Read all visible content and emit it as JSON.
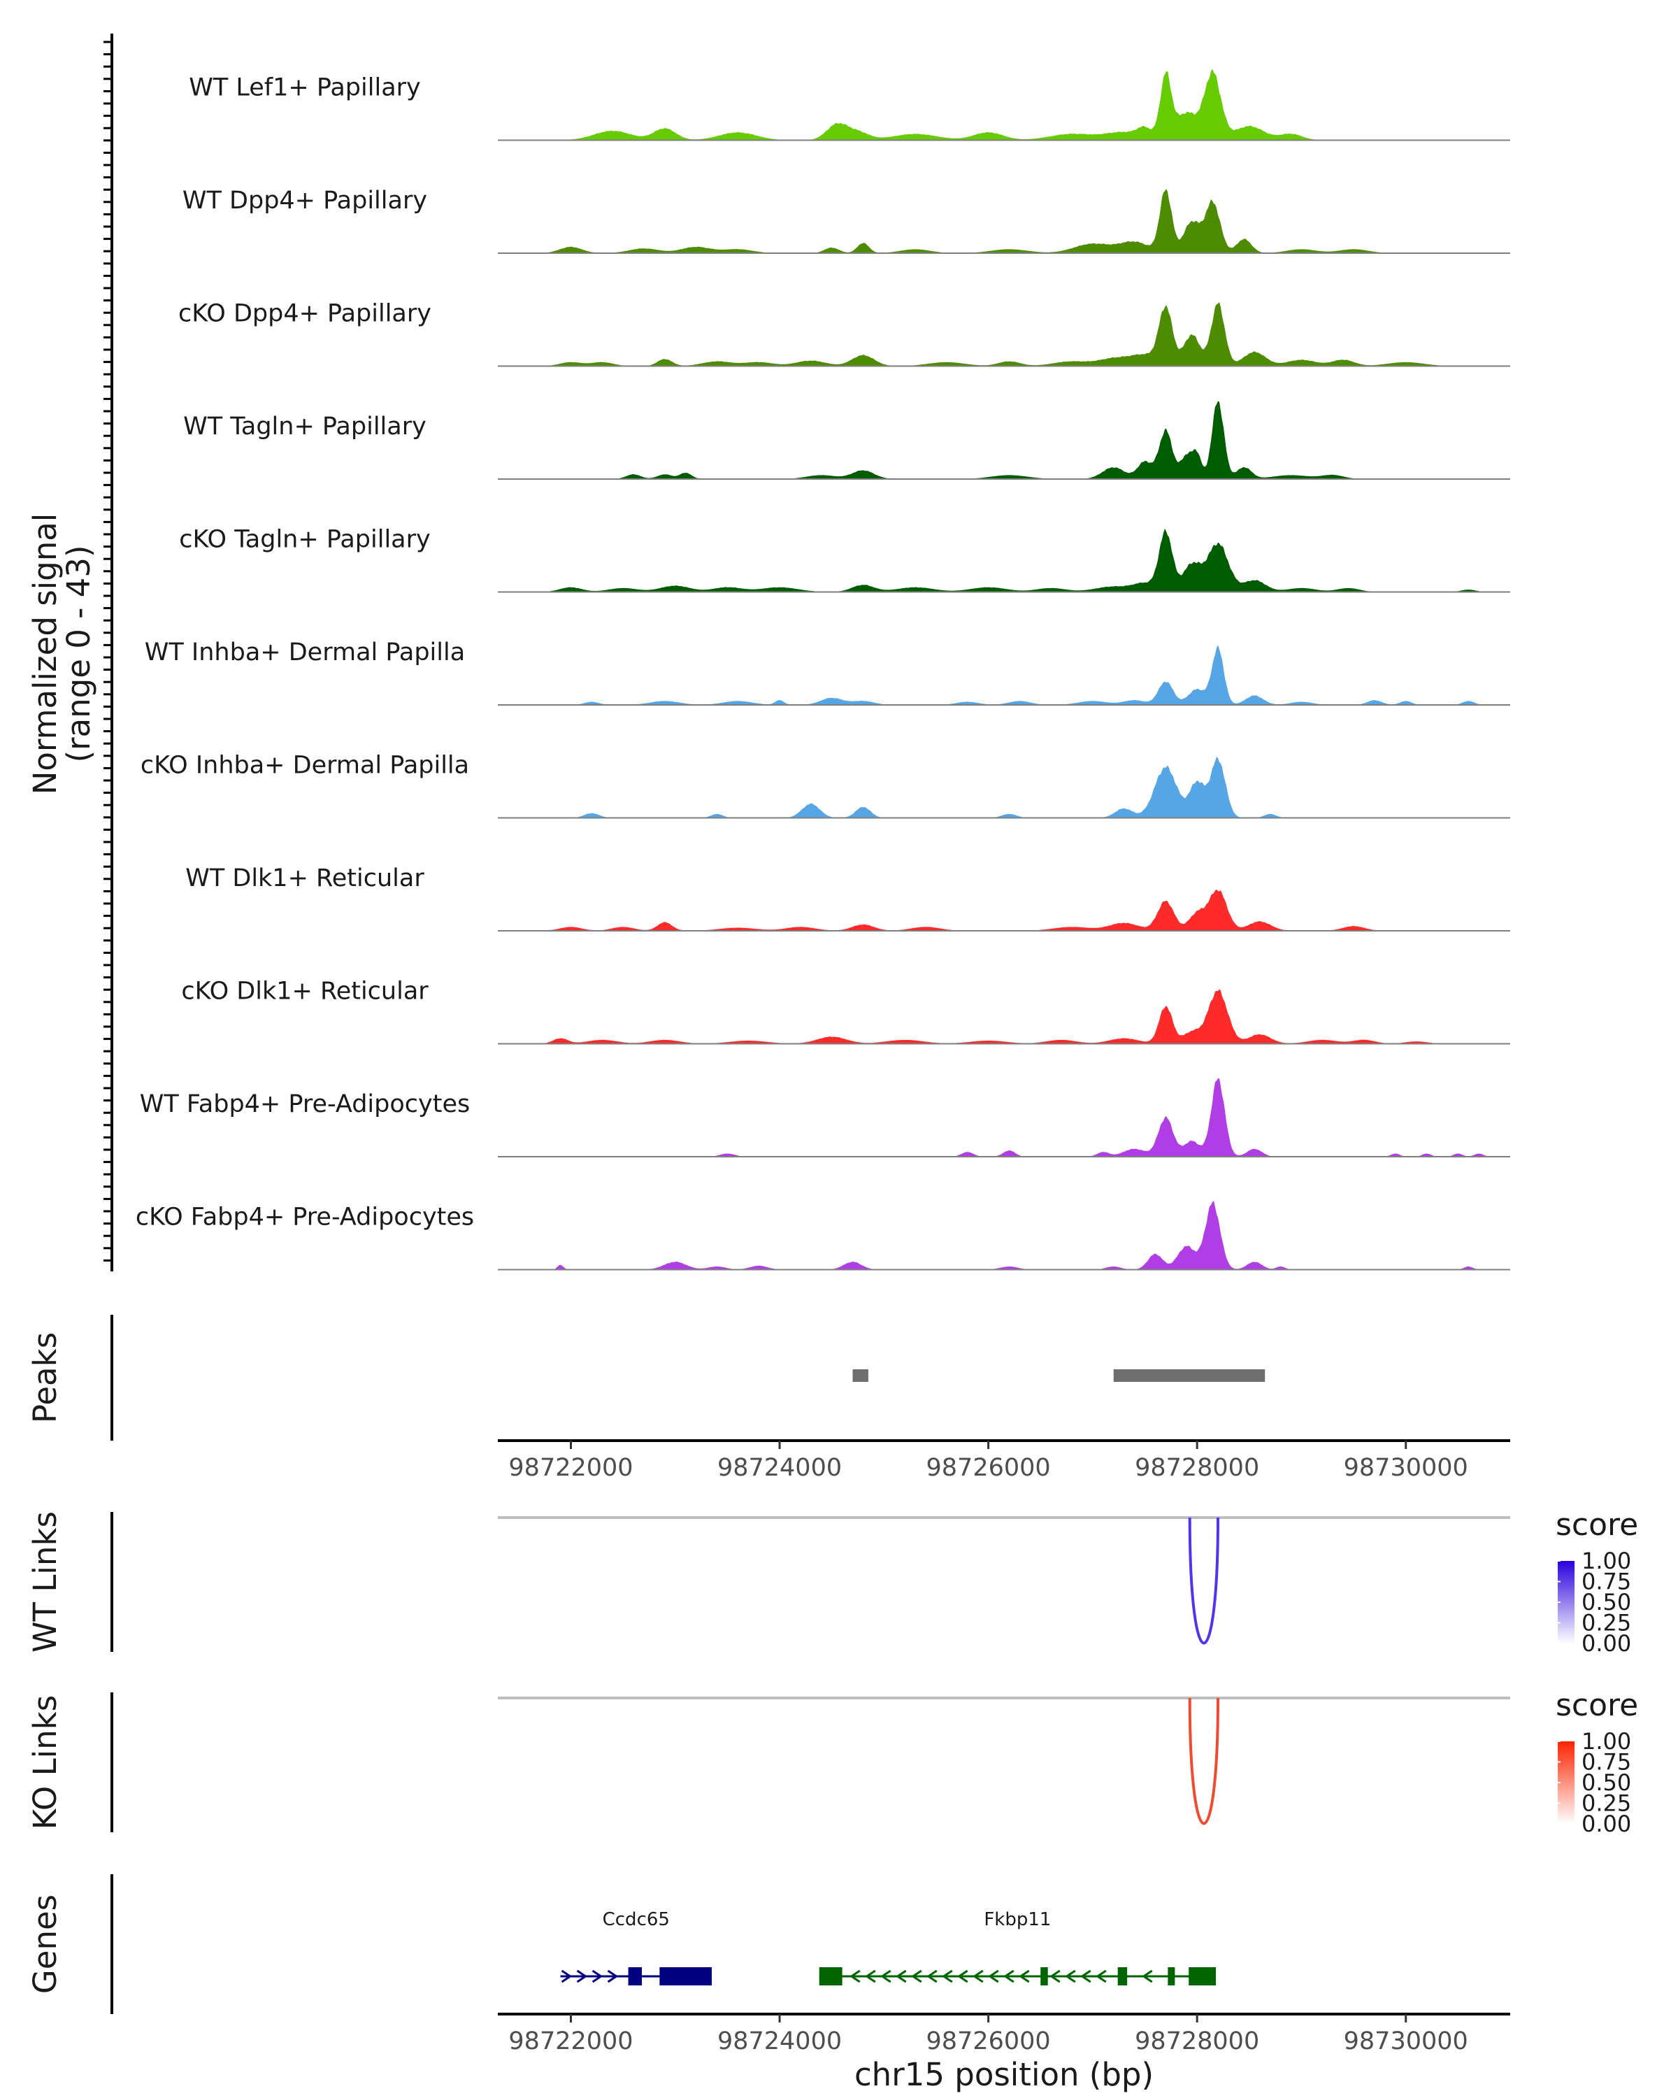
{
  "chart_data": {
    "type": "area",
    "description_free": true,
    "x_range": [
      98721300,
      98731000
    ],
    "y_label_lines": [
      "Normalized signal",
      "(range 0 - 43)"
    ],
    "y_range": [
      0,
      43
    ],
    "x_label": "chr15 position (bp)",
    "x_ticks": [
      98722000,
      98724000,
      98726000,
      98728000,
      98730000
    ],
    "coverage_tracks": [
      {
        "name": "WT Lef1+ Papillary",
        "color": "#66cc00",
        "bumps": [
          [
            98722400,
            0.12,
            250
          ],
          [
            98722900,
            0.15,
            150
          ],
          [
            98723600,
            0.1,
            250
          ],
          [
            98724550,
            0.2,
            140
          ],
          [
            98724750,
            0.1,
            150
          ],
          [
            98725300,
            0.08,
            300
          ],
          [
            98726000,
            0.1,
            200
          ],
          [
            98726800,
            0.08,
            300
          ],
          [
            98727300,
            0.1,
            250
          ],
          [
            98727500,
            0.12,
            100
          ],
          [
            98727700,
            0.8,
            75
          ],
          [
            98727900,
            0.35,
            150
          ],
          [
            98728150,
            0.85,
            110
          ],
          [
            98728500,
            0.18,
            200
          ],
          [
            98728900,
            0.08,
            150
          ]
        ]
      },
      {
        "name": "WT Dpp4+ Papillary",
        "color": "#4d8c00",
        "bumps": [
          [
            98722000,
            0.08,
            150
          ],
          [
            98722700,
            0.06,
            200
          ],
          [
            98723200,
            0.08,
            200
          ],
          [
            98723600,
            0.05,
            200
          ],
          [
            98724500,
            0.07,
            100
          ],
          [
            98724800,
            0.13,
            80
          ],
          [
            98725300,
            0.05,
            200
          ],
          [
            98726200,
            0.05,
            250
          ],
          [
            98727000,
            0.12,
            250
          ],
          [
            98727400,
            0.14,
            200
          ],
          [
            98727700,
            0.8,
            80
          ],
          [
            98727950,
            0.4,
            110
          ],
          [
            98728150,
            0.65,
            100
          ],
          [
            98728450,
            0.18,
            100
          ],
          [
            98729000,
            0.05,
            200
          ],
          [
            98729500,
            0.05,
            200
          ]
        ]
      },
      {
        "name": "cKO Dpp4+ Papillary",
        "color": "#4d8c00",
        "bumps": [
          [
            98722000,
            0.05,
            150
          ],
          [
            98722300,
            0.05,
            150
          ],
          [
            98722900,
            0.09,
            100
          ],
          [
            98723400,
            0.06,
            200
          ],
          [
            98723800,
            0.05,
            200
          ],
          [
            98724300,
            0.07,
            200
          ],
          [
            98724800,
            0.14,
            150
          ],
          [
            98725600,
            0.05,
            250
          ],
          [
            98726200,
            0.06,
            150
          ],
          [
            98726800,
            0.06,
            250
          ],
          [
            98727200,
            0.09,
            200
          ],
          [
            98727500,
            0.14,
            200
          ],
          [
            98727700,
            0.72,
            90
          ],
          [
            98727950,
            0.4,
            110
          ],
          [
            98728200,
            0.8,
            90
          ],
          [
            98728550,
            0.18,
            150
          ],
          [
            98729000,
            0.08,
            200
          ],
          [
            98729400,
            0.08,
            150
          ],
          [
            98730000,
            0.05,
            250
          ]
        ]
      },
      {
        "name": "WT Tagln+ Papillary",
        "color": "#005c00",
        "bumps": [
          [
            98722600,
            0.06,
            100
          ],
          [
            98722900,
            0.06,
            100
          ],
          [
            98723100,
            0.08,
            80
          ],
          [
            98724400,
            0.05,
            200
          ],
          [
            98724800,
            0.11,
            150
          ],
          [
            98726200,
            0.05,
            250
          ],
          [
            98727200,
            0.15,
            150
          ],
          [
            98727500,
            0.22,
            100
          ],
          [
            98727700,
            0.62,
            90
          ],
          [
            98727900,
            0.3,
            80
          ],
          [
            98728000,
            0.3,
            60
          ],
          [
            98728200,
            1.0,
            80
          ],
          [
            98728450,
            0.15,
            100
          ],
          [
            98728900,
            0.05,
            250
          ],
          [
            98729300,
            0.05,
            150
          ]
        ]
      },
      {
        "name": "cKO Tagln+ Papillary",
        "color": "#005c00",
        "bumps": [
          [
            98722000,
            0.06,
            150
          ],
          [
            98722500,
            0.05,
            200
          ],
          [
            98723000,
            0.08,
            200
          ],
          [
            98723500,
            0.06,
            200
          ],
          [
            98724000,
            0.06,
            250
          ],
          [
            98724800,
            0.09,
            150
          ],
          [
            98725300,
            0.06,
            250
          ],
          [
            98726000,
            0.06,
            250
          ],
          [
            98726600,
            0.05,
            200
          ],
          [
            98727200,
            0.07,
            250
          ],
          [
            98727500,
            0.1,
            150
          ],
          [
            98727700,
            0.76,
            90
          ],
          [
            98727950,
            0.35,
            120
          ],
          [
            98728200,
            0.62,
            140
          ],
          [
            98728550,
            0.15,
            150
          ],
          [
            98729000,
            0.05,
            200
          ],
          [
            98729450,
            0.05,
            150
          ],
          [
            98730600,
            0.03,
            100
          ]
        ]
      },
      {
        "name": "WT Inhba+ Dermal Papilla",
        "color": "#56a6e6",
        "bumps": [
          [
            98722200,
            0.04,
            100
          ],
          [
            98722900,
            0.05,
            200
          ],
          [
            98723600,
            0.05,
            200
          ],
          [
            98724000,
            0.06,
            60
          ],
          [
            98724500,
            0.09,
            150
          ],
          [
            98724800,
            0.05,
            150
          ],
          [
            98725800,
            0.04,
            150
          ],
          [
            98726300,
            0.05,
            150
          ],
          [
            98727000,
            0.05,
            200
          ],
          [
            98727400,
            0.06,
            150
          ],
          [
            98727700,
            0.3,
            100
          ],
          [
            98728000,
            0.2,
            120
          ],
          [
            98728200,
            0.72,
            80
          ],
          [
            98728550,
            0.12,
            120
          ],
          [
            98729000,
            0.04,
            150
          ],
          [
            98729700,
            0.06,
            100
          ],
          [
            98730000,
            0.05,
            80
          ],
          [
            98730600,
            0.05,
            80
          ]
        ]
      },
      {
        "name": "cKO Inhba+ Dermal Papilla",
        "color": "#56a6e6",
        "bumps": [
          [
            98722200,
            0.06,
            100
          ],
          [
            98723400,
            0.05,
            80
          ],
          [
            98724300,
            0.18,
            120
          ],
          [
            98724800,
            0.14,
            100
          ],
          [
            98726200,
            0.05,
            100
          ],
          [
            98727300,
            0.12,
            120
          ],
          [
            98727700,
            0.65,
            150
          ],
          [
            98728000,
            0.45,
            100
          ],
          [
            98728200,
            0.75,
            100
          ],
          [
            98728700,
            0.05,
            80
          ]
        ]
      },
      {
        "name": "WT Dlk1+ Reticular",
        "color": "#ff2a2a",
        "bumps": [
          [
            98722000,
            0.05,
            150
          ],
          [
            98722500,
            0.05,
            150
          ],
          [
            98722900,
            0.11,
            100
          ],
          [
            98723600,
            0.04,
            250
          ],
          [
            98724200,
            0.05,
            200
          ],
          [
            98724800,
            0.08,
            150
          ],
          [
            98725400,
            0.05,
            200
          ],
          [
            98726800,
            0.05,
            250
          ],
          [
            98727300,
            0.1,
            200
          ],
          [
            98727700,
            0.38,
            110
          ],
          [
            98728000,
            0.22,
            110
          ],
          [
            98728200,
            0.52,
            120
          ],
          [
            98728600,
            0.12,
            150
          ],
          [
            98729500,
            0.06,
            150
          ]
        ]
      },
      {
        "name": "cKO Dlk1+ Reticular",
        "color": "#ff2a2a",
        "bumps": [
          [
            98721900,
            0.07,
            100
          ],
          [
            98722300,
            0.05,
            200
          ],
          [
            98722900,
            0.05,
            200
          ],
          [
            98723700,
            0.04,
            250
          ],
          [
            98724500,
            0.09,
            200
          ],
          [
            98725200,
            0.05,
            250
          ],
          [
            98726000,
            0.04,
            250
          ],
          [
            98726700,
            0.05,
            200
          ],
          [
            98727300,
            0.07,
            200
          ],
          [
            98727700,
            0.48,
            90
          ],
          [
            98727950,
            0.15,
            120
          ],
          [
            98728200,
            0.68,
            130
          ],
          [
            98728600,
            0.12,
            150
          ],
          [
            98729200,
            0.05,
            200
          ],
          [
            98729600,
            0.05,
            150
          ],
          [
            98730100,
            0.03,
            150
          ]
        ]
      },
      {
        "name": "WT Fabp4+ Pre-Adipocytes",
        "color": "#b03de6",
        "bumps": [
          [
            98723500,
            0.04,
            100
          ],
          [
            98725800,
            0.06,
            80
          ],
          [
            98726200,
            0.08,
            80
          ],
          [
            98727100,
            0.06,
            80
          ],
          [
            98727400,
            0.1,
            150
          ],
          [
            98727700,
            0.5,
            100
          ],
          [
            98727950,
            0.2,
            110
          ],
          [
            98728200,
            1.0,
            90
          ],
          [
            98728550,
            0.1,
            100
          ],
          [
            98729900,
            0.04,
            60
          ],
          [
            98730200,
            0.04,
            60
          ],
          [
            98730500,
            0.04,
            60
          ],
          [
            98730700,
            0.04,
            60
          ]
        ]
      },
      {
        "name": "cKO Fabp4+ Pre-Adipocytes",
        "color": "#b03de6",
        "bumps": [
          [
            98721900,
            0.06,
            40
          ],
          [
            98723000,
            0.1,
            150
          ],
          [
            98723400,
            0.04,
            120
          ],
          [
            98723800,
            0.05,
            120
          ],
          [
            98724700,
            0.1,
            120
          ],
          [
            98726200,
            0.04,
            120
          ],
          [
            98727200,
            0.04,
            100
          ],
          [
            98727600,
            0.2,
            100
          ],
          [
            98727900,
            0.3,
            120
          ],
          [
            98728150,
            0.85,
            100
          ],
          [
            98728550,
            0.1,
            100
          ],
          [
            98728800,
            0.04,
            60
          ],
          [
            98730600,
            0.04,
            60
          ]
        ]
      }
    ],
    "peaks": {
      "label": "Peaks",
      "color": "#6e6e6e",
      "regions": [
        [
          98724700,
          98724850
        ],
        [
          98727200,
          98728650
        ]
      ]
    },
    "links": [
      {
        "label": "WT Links",
        "color": "#5533ee",
        "arcs": [
          {
            "start": 98727930,
            "end": 98728200,
            "score": 0.85
          }
        ],
        "legend": {
          "title": "score",
          "ticks": [
            "1.00",
            "0.75",
            "0.50",
            "0.25",
            "0.00"
          ],
          "low": "#ffffff",
          "high": "#2b00dd"
        }
      },
      {
        "label": "KO Links",
        "color": "#f04a30",
        "arcs": [
          {
            "start": 98727930,
            "end": 98728200,
            "score": 0.85
          }
        ],
        "legend": {
          "title": "score",
          "ticks": [
            "1.00",
            "0.75",
            "0.50",
            "0.25",
            "0.00"
          ],
          "low": "#ffffff",
          "high": "#ff2200"
        }
      }
    ],
    "genes_track": {
      "label": "Genes",
      "genes": [
        {
          "name": "Ccdc65",
          "color": "#000080",
          "strand": "+",
          "start": 98721900,
          "end": 98723350,
          "exons": [
            [
              98722550,
              98722680
            ],
            [
              98722850,
              98723350
            ]
          ]
        },
        {
          "name": "Fkbp11",
          "color": "#006400",
          "strand": "-",
          "start": 98724380,
          "end": 98728180,
          "exons": [
            [
              98724380,
              98724600
            ],
            [
              98726500,
              98726570
            ],
            [
              98727240,
              98727330
            ],
            [
              98727720,
              98727780
            ],
            [
              98727920,
              98728180
            ]
          ]
        }
      ]
    }
  }
}
